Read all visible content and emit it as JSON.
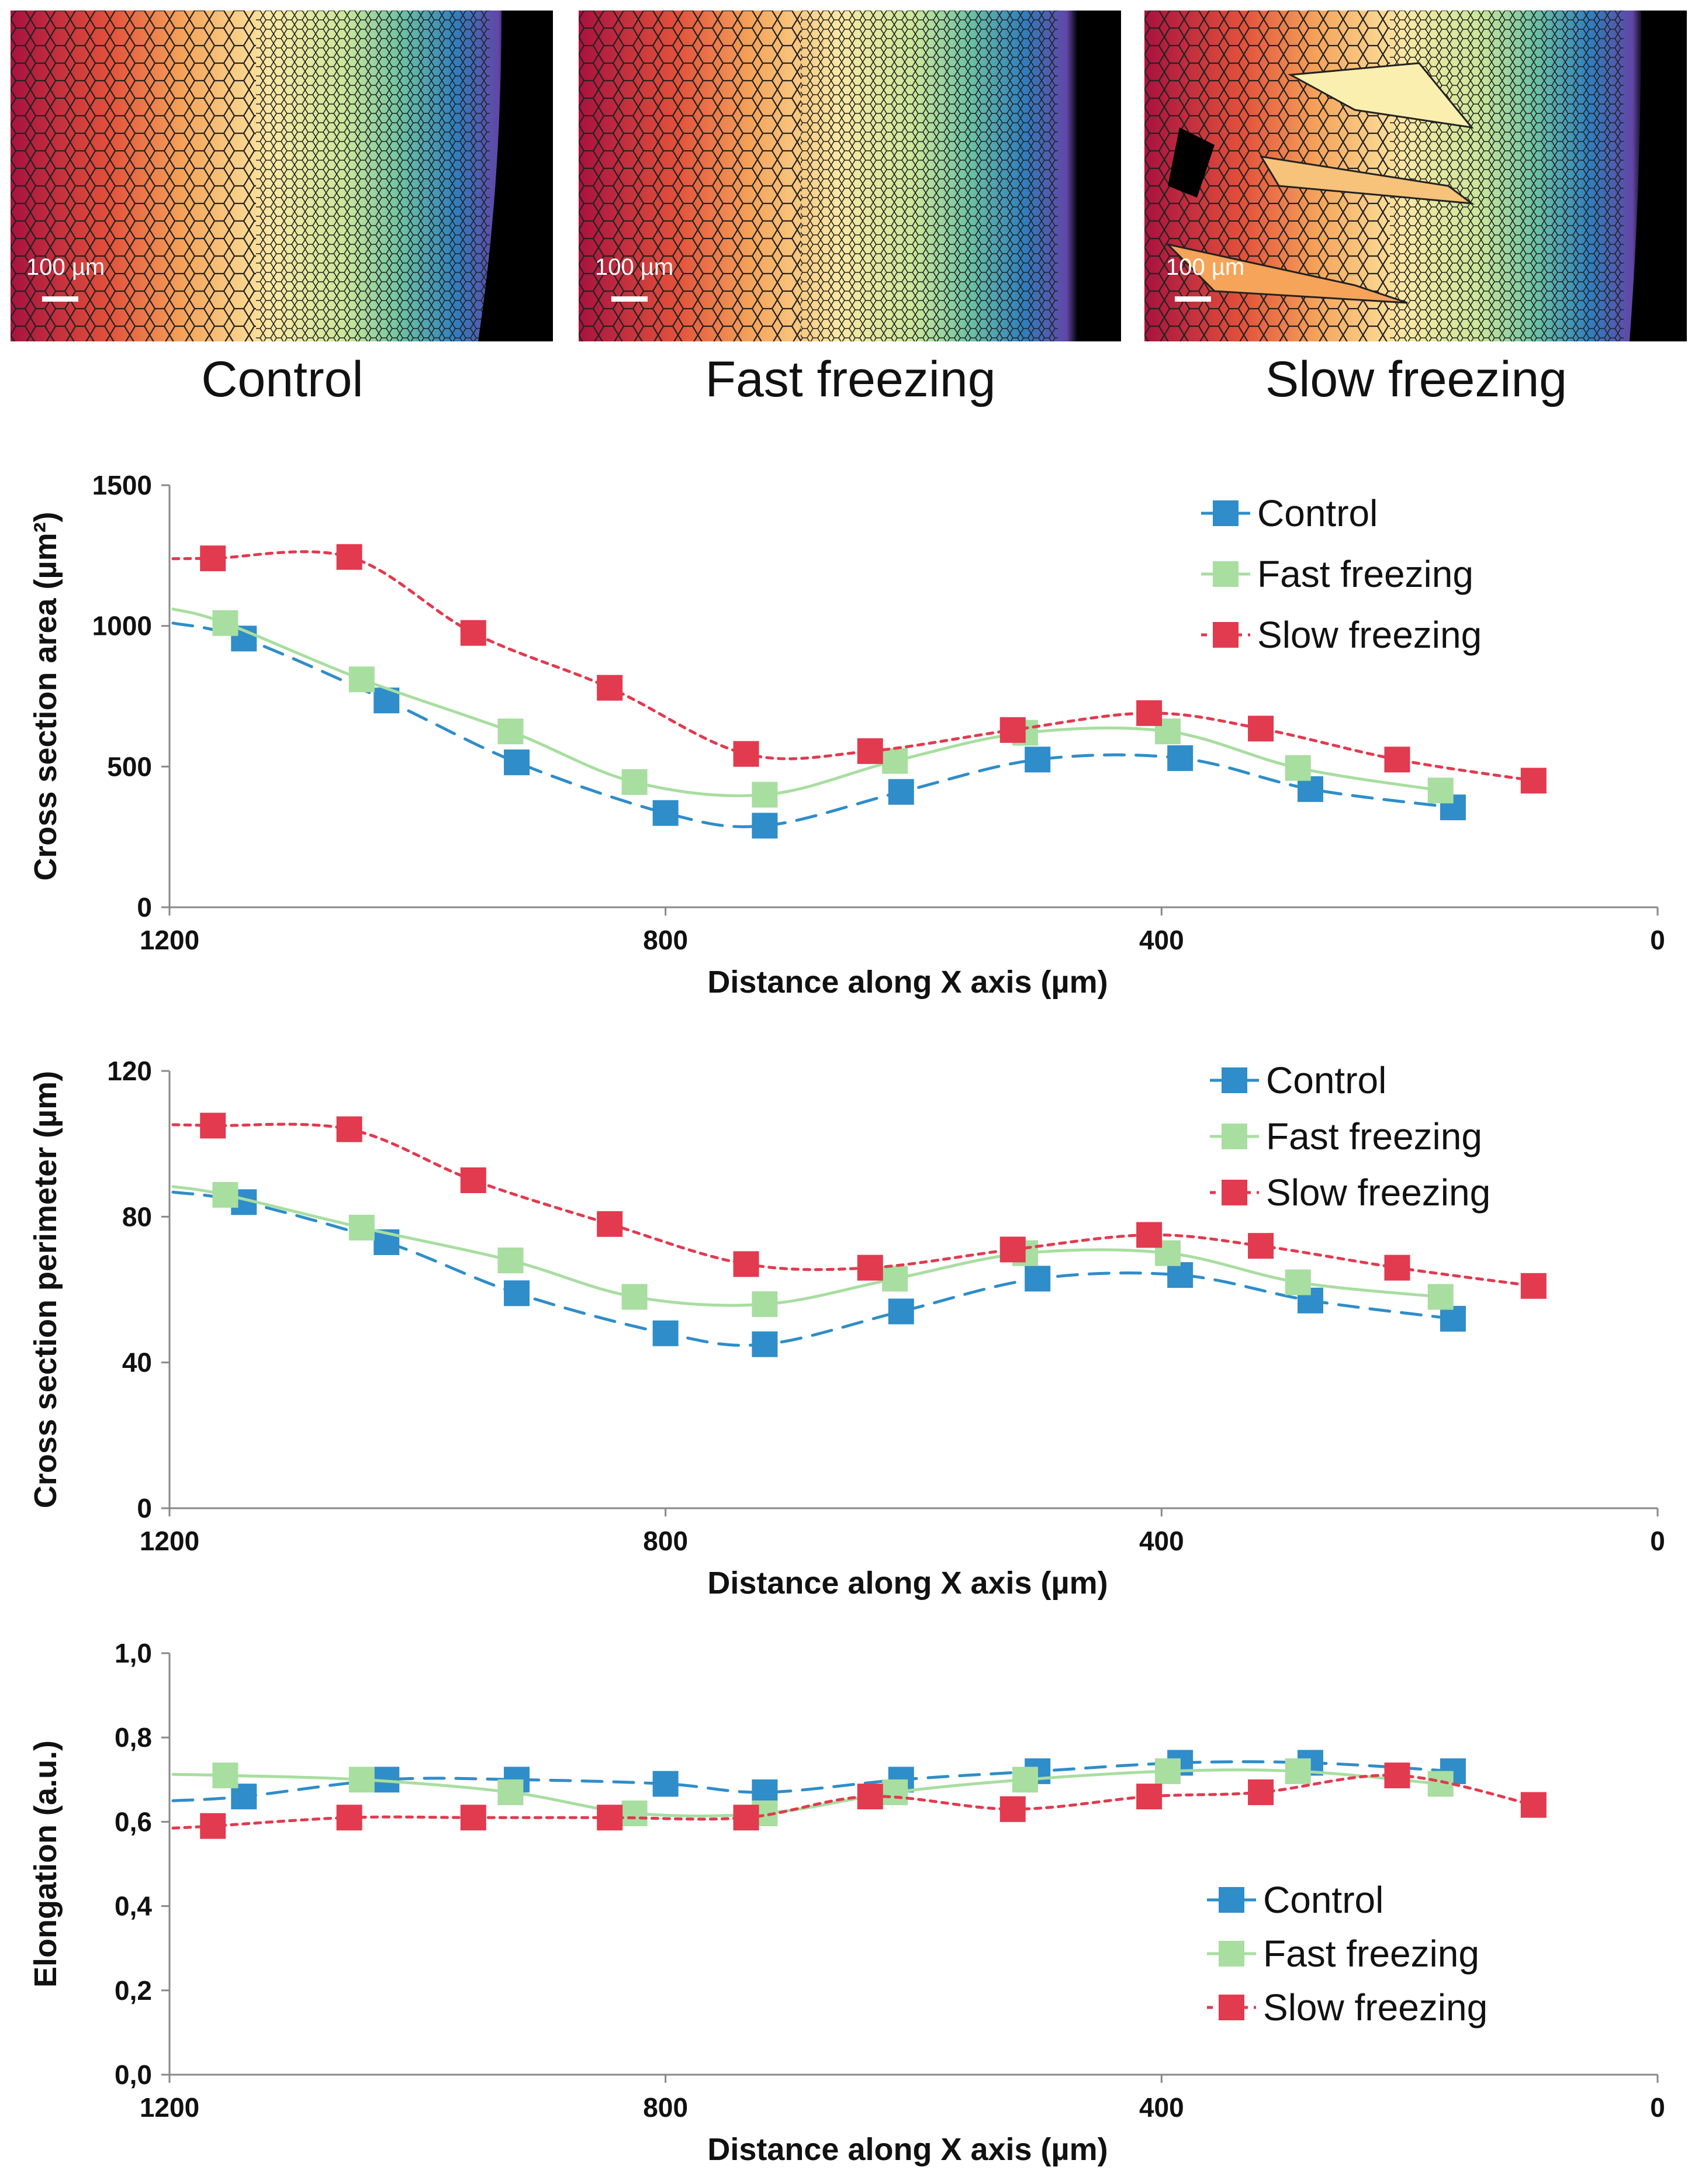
{
  "micrographs": [
    {
      "caption": "Control",
      "scale_bar_label": "100 µm"
    },
    {
      "caption": "Fast freezing",
      "scale_bar_label": "100 µm"
    },
    {
      "caption": "Slow freezing",
      "scale_bar_label": "100 µm"
    }
  ],
  "colors": {
    "control": "#2f8dc9",
    "fast": "#a8dea0",
    "slow": "#e23a4f",
    "axis": "#888888",
    "text": "#111111"
  },
  "chart_data": [
    {
      "type": "line",
      "ylabel": "Cross section area (µm²)",
      "xlabel": "Distance along X axis (µm)",
      "xlim": [
        1200,
        0
      ],
      "ylim": [
        0,
        1500
      ],
      "xticks": [
        "1200",
        "800",
        "400",
        "0"
      ],
      "yticks": [
        "0",
        "500",
        "1000",
        "1500"
      ],
      "legend": [
        "Control",
        "Fast freezing",
        "Slow freezing"
      ],
      "legend_position": "top-right",
      "series": [
        {
          "name": "Control",
          "style": "dashed",
          "x": [
            1140,
            1025,
            920,
            800,
            720,
            610,
            500,
            385,
            280,
            165
          ],
          "y": [
            955,
            735,
            515,
            335,
            290,
            410,
            525,
            530,
            420,
            355
          ]
        },
        {
          "name": "Fast freezing",
          "style": "solid",
          "x": [
            1155,
            1045,
            925,
            825,
            720,
            615,
            510,
            395,
            290,
            175
          ],
          "y": [
            1010,
            810,
            625,
            445,
            400,
            520,
            620,
            625,
            495,
            415
          ]
        },
        {
          "name": "Slow freezing",
          "style": "dotted",
          "x": [
            1165,
            1055,
            955,
            845,
            735,
            635,
            520,
            410,
            320,
            210,
            100
          ],
          "y": [
            1240,
            1245,
            975,
            780,
            545,
            555,
            630,
            690,
            635,
            525,
            450
          ]
        }
      ]
    },
    {
      "type": "line",
      "ylabel": "Cross section perimeter (µm)",
      "xlabel": "Distance along X axis (µm)",
      "xlim": [
        1200,
        0
      ],
      "ylim": [
        0,
        120
      ],
      "xticks": [
        "1200",
        "800",
        "400",
        "0"
      ],
      "yticks": [
        "0",
        "40",
        "80",
        "120"
      ],
      "legend": [
        "Control",
        "Fast freezing",
        "Slow freezing"
      ],
      "legend_position": "top-right",
      "series": [
        {
          "name": "Control",
          "style": "dashed",
          "x": [
            1140,
            1025,
            920,
            800,
            720,
            610,
            500,
            385,
            280,
            165
          ],
          "y": [
            84,
            73,
            59,
            48,
            45,
            54,
            63,
            64,
            57,
            52
          ]
        },
        {
          "name": "Fast freezing",
          "style": "solid",
          "x": [
            1155,
            1045,
            925,
            825,
            720,
            615,
            510,
            395,
            290,
            175
          ],
          "y": [
            86,
            77,
            68,
            58,
            56,
            63,
            70,
            70,
            62,
            58
          ]
        },
        {
          "name": "Slow freezing",
          "style": "dotted",
          "x": [
            1165,
            1055,
            955,
            845,
            735,
            635,
            520,
            410,
            320,
            210,
            100
          ],
          "y": [
            105,
            104,
            90,
            78,
            67,
            66,
            71,
            75,
            72,
            66,
            61
          ]
        }
      ]
    },
    {
      "type": "line",
      "ylabel": "Elongation (a.u.)",
      "xlabel": "Distance along X axis (µm)",
      "xlim": [
        1200,
        0
      ],
      "ylim": [
        0,
        1
      ],
      "xticks": [
        "1200",
        "800",
        "400",
        "0"
      ],
      "yticks": [
        "0,0",
        "0,2",
        "0,4",
        "0,6",
        "0,8",
        "1,0"
      ],
      "legend": [
        "Control",
        "Fast freezing",
        "Slow freezing"
      ],
      "legend_position": "bottom-right",
      "series": [
        {
          "name": "Control",
          "style": "dashed",
          "x": [
            1140,
            1025,
            920,
            800,
            720,
            610,
            500,
            385,
            280,
            165
          ],
          "y": [
            0.66,
            0.7,
            0.7,
            0.69,
            0.67,
            0.7,
            0.72,
            0.74,
            0.74,
            0.72
          ]
        },
        {
          "name": "Fast freezing",
          "style": "solid",
          "x": [
            1155,
            1045,
            925,
            825,
            720,
            615,
            510,
            395,
            290,
            175
          ],
          "y": [
            0.71,
            0.7,
            0.67,
            0.62,
            0.62,
            0.67,
            0.7,
            0.72,
            0.72,
            0.69
          ]
        },
        {
          "name": "Slow freezing",
          "style": "dotted",
          "x": [
            1165,
            1055,
            955,
            845,
            735,
            635,
            520,
            410,
            320,
            210,
            100
          ],
          "y": [
            0.59,
            0.61,
            0.61,
            0.61,
            0.61,
            0.66,
            0.63,
            0.66,
            0.67,
            0.71,
            0.64
          ]
        }
      ]
    }
  ]
}
